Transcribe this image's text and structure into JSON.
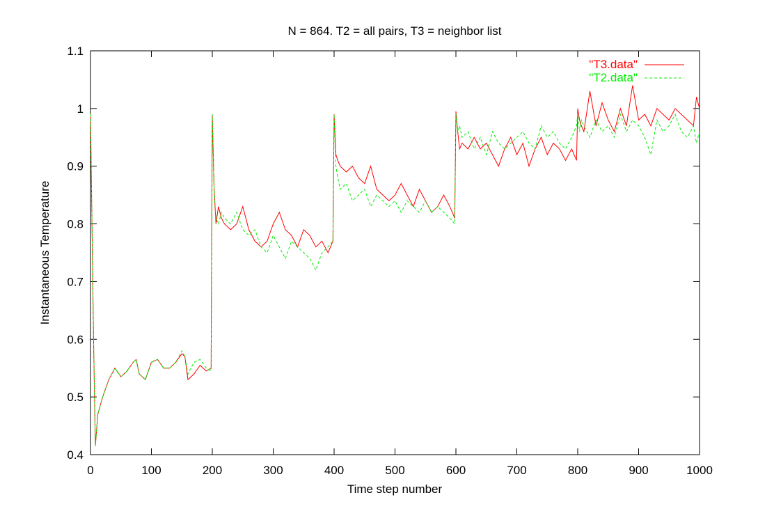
{
  "chart_data": {
    "type": "line",
    "title": "N = 864. T2 = all pairs, T3 = neighbor list",
    "xlabel": "Time step number",
    "ylabel": "Instantaneous Temperature",
    "xlim": [
      0,
      1000
    ],
    "ylim": [
      0.4,
      1.1
    ],
    "xticks": [
      0,
      100,
      200,
      300,
      400,
      500,
      600,
      700,
      800,
      900,
      1000
    ],
    "yticks": [
      0.4,
      0.5,
      0.6,
      0.7,
      0.8,
      0.9,
      1,
      1.1
    ],
    "xtick_labels": [
      "0",
      "100",
      "200",
      "300",
      "400",
      "500",
      "600",
      "700",
      "800",
      "900",
      "1000"
    ],
    "ytick_labels": [
      "0.4",
      "0.5",
      "0.6",
      "0.7",
      "0.8",
      "0.9",
      "1",
      "1.1"
    ],
    "grid": false,
    "legend_position": "top-right",
    "series": [
      {
        "name": "\"T3.data\"",
        "color": "#ff0000",
        "dash": "solid",
        "x": [
          0,
          5,
          8,
          12,
          20,
          30,
          40,
          50,
          60,
          70,
          75,
          80,
          90,
          100,
          110,
          120,
          130,
          140,
          150,
          155,
          160,
          170,
          180,
          190,
          198,
          200,
          203,
          206,
          210,
          215,
          220,
          230,
          240,
          250,
          260,
          270,
          280,
          290,
          300,
          310,
          320,
          330,
          340,
          350,
          360,
          370,
          380,
          390,
          398,
          400,
          403,
          406,
          410,
          420,
          430,
          440,
          450,
          460,
          470,
          480,
          490,
          500,
          510,
          520,
          530,
          540,
          550,
          560,
          570,
          580,
          590,
          598,
          600,
          603,
          606,
          610,
          620,
          630,
          640,
          650,
          660,
          670,
          680,
          690,
          700,
          710,
          720,
          730,
          740,
          750,
          760,
          770,
          780,
          790,
          798,
          800,
          803,
          806,
          810,
          820,
          830,
          840,
          850,
          860,
          870,
          880,
          890,
          900,
          910,
          920,
          930,
          940,
          950,
          960,
          970,
          980,
          990,
          995,
          1000
        ],
        "y": [
          0.99,
          0.6,
          0.415,
          0.47,
          0.5,
          0.53,
          0.55,
          0.535,
          0.545,
          0.56,
          0.565,
          0.54,
          0.53,
          0.56,
          0.565,
          0.55,
          0.55,
          0.56,
          0.575,
          0.57,
          0.53,
          0.54,
          0.555,
          0.545,
          0.55,
          0.99,
          0.86,
          0.8,
          0.83,
          0.81,
          0.8,
          0.79,
          0.8,
          0.83,
          0.79,
          0.77,
          0.76,
          0.77,
          0.8,
          0.82,
          0.79,
          0.78,
          0.76,
          0.79,
          0.78,
          0.76,
          0.77,
          0.75,
          0.77,
          0.99,
          0.92,
          0.91,
          0.9,
          0.89,
          0.9,
          0.88,
          0.87,
          0.9,
          0.86,
          0.85,
          0.84,
          0.85,
          0.87,
          0.85,
          0.83,
          0.86,
          0.84,
          0.82,
          0.83,
          0.85,
          0.83,
          0.81,
          0.995,
          0.96,
          0.93,
          0.94,
          0.93,
          0.95,
          0.93,
          0.94,
          0.92,
          0.9,
          0.93,
          0.95,
          0.92,
          0.94,
          0.9,
          0.93,
          0.95,
          0.92,
          0.94,
          0.93,
          0.91,
          0.93,
          0.91,
          1.0,
          0.98,
          0.97,
          0.96,
          1.03,
          0.97,
          1.01,
          0.98,
          0.96,
          1.0,
          0.97,
          1.04,
          0.98,
          0.99,
          0.97,
          1.0,
          0.99,
          0.98,
          1.0,
          0.99,
          0.98,
          0.97,
          1.02,
          1.0
        ]
      },
      {
        "name": "\"T2.data\"",
        "color": "#00ee00",
        "dash": "dashed",
        "x": [
          0,
          5,
          8,
          12,
          20,
          30,
          40,
          50,
          60,
          70,
          75,
          80,
          90,
          100,
          110,
          120,
          130,
          140,
          150,
          155,
          160,
          170,
          180,
          190,
          198,
          200,
          203,
          206,
          210,
          215,
          220,
          230,
          240,
          250,
          260,
          270,
          280,
          290,
          300,
          310,
          320,
          330,
          340,
          350,
          360,
          370,
          380,
          390,
          398,
          400,
          403,
          406,
          410,
          420,
          430,
          440,
          450,
          460,
          470,
          480,
          490,
          500,
          510,
          520,
          530,
          540,
          550,
          560,
          570,
          580,
          590,
          598,
          600,
          603,
          606,
          610,
          620,
          630,
          640,
          650,
          660,
          670,
          680,
          690,
          700,
          710,
          720,
          730,
          740,
          750,
          760,
          770,
          780,
          790,
          798,
          800,
          803,
          806,
          810,
          820,
          830,
          840,
          850,
          860,
          870,
          880,
          890,
          900,
          910,
          920,
          930,
          940,
          950,
          960,
          970,
          980,
          990,
          995,
          1000
        ],
        "y": [
          0.99,
          0.6,
          0.415,
          0.47,
          0.5,
          0.53,
          0.55,
          0.535,
          0.545,
          0.56,
          0.565,
          0.54,
          0.53,
          0.56,
          0.565,
          0.55,
          0.55,
          0.56,
          0.58,
          0.57,
          0.54,
          0.56,
          0.565,
          0.55,
          0.545,
          0.99,
          0.86,
          0.81,
          0.8,
          0.82,
          0.81,
          0.8,
          0.82,
          0.79,
          0.78,
          0.79,
          0.76,
          0.75,
          0.78,
          0.76,
          0.74,
          0.77,
          0.76,
          0.75,
          0.74,
          0.72,
          0.75,
          0.76,
          0.77,
          0.99,
          0.9,
          0.88,
          0.86,
          0.87,
          0.84,
          0.85,
          0.86,
          0.83,
          0.85,
          0.84,
          0.83,
          0.84,
          0.82,
          0.84,
          0.83,
          0.82,
          0.84,
          0.82,
          0.83,
          0.82,
          0.81,
          0.8,
          0.99,
          0.96,
          0.97,
          0.95,
          0.96,
          0.93,
          0.95,
          0.92,
          0.96,
          0.94,
          0.93,
          0.94,
          0.95,
          0.96,
          0.94,
          0.93,
          0.97,
          0.95,
          0.96,
          0.94,
          0.93,
          0.95,
          0.97,
          0.99,
          0.96,
          0.98,
          0.97,
          0.95,
          0.98,
          0.96,
          0.97,
          0.95,
          0.99,
          0.96,
          0.98,
          0.97,
          0.95,
          0.92,
          0.98,
          0.96,
          0.97,
          0.99,
          0.96,
          0.95,
          0.97,
          0.94,
          0.96
        ]
      }
    ]
  }
}
